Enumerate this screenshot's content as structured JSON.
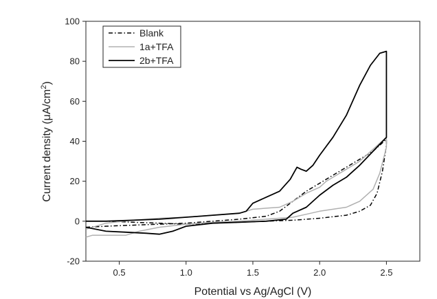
{
  "chart_data": {
    "type": "line",
    "title": "",
    "xlabel": "Potential vs Ag/AgCl (V)",
    "ylabel_prefix": "Current density (",
    "ylabel_mu": "μ",
    "ylabel_unit": "A/cm",
    "ylabel_sup": "2",
    "ylabel_suffix": ")",
    "xlim": [
      0.25,
      2.75
    ],
    "ylim": [
      -20,
      100
    ],
    "x_ticks": [
      0.5,
      1.0,
      1.5,
      2.0,
      2.5
    ],
    "x_tick_labels": [
      "0.5",
      "1.0",
      "1.5",
      "2.0",
      "2.5"
    ],
    "y_ticks": [
      -20,
      0,
      20,
      40,
      60,
      80,
      100
    ],
    "y_tick_labels": [
      "-20",
      "0",
      "20",
      "40",
      "60",
      "80",
      "100"
    ],
    "grid": false,
    "legend_position": "top-left",
    "series": [
      {
        "name": "Blank",
        "color": "#000000",
        "dash": "dashdot",
        "points": [
          [
            0.25,
            -3
          ],
          [
            0.4,
            -2.5
          ],
          [
            0.6,
            -2
          ],
          [
            0.8,
            -1.5
          ],
          [
            1.0,
            -1
          ],
          [
            1.2,
            0
          ],
          [
            1.4,
            1
          ],
          [
            1.6,
            2.5
          ],
          [
            1.7,
            5
          ],
          [
            1.8,
            10
          ],
          [
            1.9,
            15
          ],
          [
            2.0,
            19
          ],
          [
            2.1,
            23
          ],
          [
            2.2,
            27
          ],
          [
            2.3,
            31
          ],
          [
            2.4,
            35
          ],
          [
            2.5,
            41
          ],
          [
            2.5,
            38
          ],
          [
            2.47,
            25
          ],
          [
            2.43,
            14
          ],
          [
            2.38,
            8
          ],
          [
            2.3,
            5
          ],
          [
            2.2,
            3
          ],
          [
            2.0,
            1.5
          ],
          [
            1.8,
            0.5
          ],
          [
            1.6,
            0
          ],
          [
            1.4,
            -0.5
          ],
          [
            1.2,
            -1
          ],
          [
            1.0,
            -1.5
          ],
          [
            0.8,
            -1
          ],
          [
            0.6,
            -0.5
          ],
          [
            0.4,
            0
          ],
          [
            0.25,
            0
          ]
        ]
      },
      {
        "name": "1a+TFA",
        "color": "#b0b0b0",
        "dash": "solid",
        "points": [
          [
            0.25,
            -4
          ],
          [
            0.4,
            -1
          ],
          [
            0.6,
            0.5
          ],
          [
            0.8,
            1.5
          ],
          [
            1.0,
            2
          ],
          [
            1.2,
            3
          ],
          [
            1.4,
            4
          ],
          [
            1.5,
            6
          ],
          [
            1.6,
            6.5
          ],
          [
            1.7,
            7
          ],
          [
            1.8,
            10
          ],
          [
            1.9,
            14
          ],
          [
            2.0,
            17
          ],
          [
            2.05,
            20
          ],
          [
            2.1,
            22
          ],
          [
            2.2,
            26
          ],
          [
            2.3,
            30
          ],
          [
            2.4,
            36
          ],
          [
            2.5,
            42
          ],
          [
            2.5,
            37
          ],
          [
            2.45,
            24
          ],
          [
            2.4,
            16
          ],
          [
            2.3,
            10
          ],
          [
            2.2,
            7
          ],
          [
            2.0,
            5
          ],
          [
            1.9,
            3.5
          ],
          [
            1.8,
            2
          ],
          [
            1.6,
            1
          ],
          [
            1.4,
            0
          ],
          [
            1.2,
            -0.5
          ],
          [
            1.0,
            -1.5
          ],
          [
            0.8,
            -3
          ],
          [
            0.65,
            -5
          ],
          [
            0.55,
            -7
          ],
          [
            0.4,
            -7
          ],
          [
            0.3,
            -7
          ],
          [
            0.25,
            -8
          ]
        ]
      },
      {
        "name": "2b+TFA",
        "color": "#000000",
        "dash": "solid",
        "points": [
          [
            0.25,
            -3
          ],
          [
            0.4,
            -5
          ],
          [
            0.55,
            -5.5
          ],
          [
            0.7,
            -6
          ],
          [
            0.8,
            -6.5
          ],
          [
            0.9,
            -5
          ],
          [
            1.0,
            -2.5
          ],
          [
            1.2,
            -1
          ],
          [
            1.4,
            -0.5
          ],
          [
            1.6,
            0
          ],
          [
            1.75,
            1
          ],
          [
            1.8,
            4
          ],
          [
            1.9,
            7
          ],
          [
            2.0,
            13
          ],
          [
            2.1,
            18
          ],
          [
            2.2,
            22
          ],
          [
            2.3,
            28
          ],
          [
            2.4,
            35
          ],
          [
            2.5,
            42
          ],
          [
            2.5,
            85
          ],
          [
            2.45,
            84
          ],
          [
            2.38,
            78
          ],
          [
            2.3,
            68
          ],
          [
            2.2,
            53
          ],
          [
            2.1,
            42
          ],
          [
            2.0,
            33
          ],
          [
            1.95,
            28
          ],
          [
            1.9,
            25
          ],
          [
            1.86,
            26
          ],
          [
            1.83,
            27
          ],
          [
            1.78,
            21
          ],
          [
            1.7,
            15
          ],
          [
            1.6,
            12
          ],
          [
            1.5,
            9
          ],
          [
            1.45,
            5
          ],
          [
            1.4,
            4
          ],
          [
            1.2,
            3
          ],
          [
            1.1,
            2.5
          ],
          [
            1.0,
            2
          ],
          [
            0.8,
            1
          ],
          [
            0.6,
            0.5
          ],
          [
            0.4,
            0
          ],
          [
            0.25,
            0
          ]
        ]
      }
    ]
  }
}
